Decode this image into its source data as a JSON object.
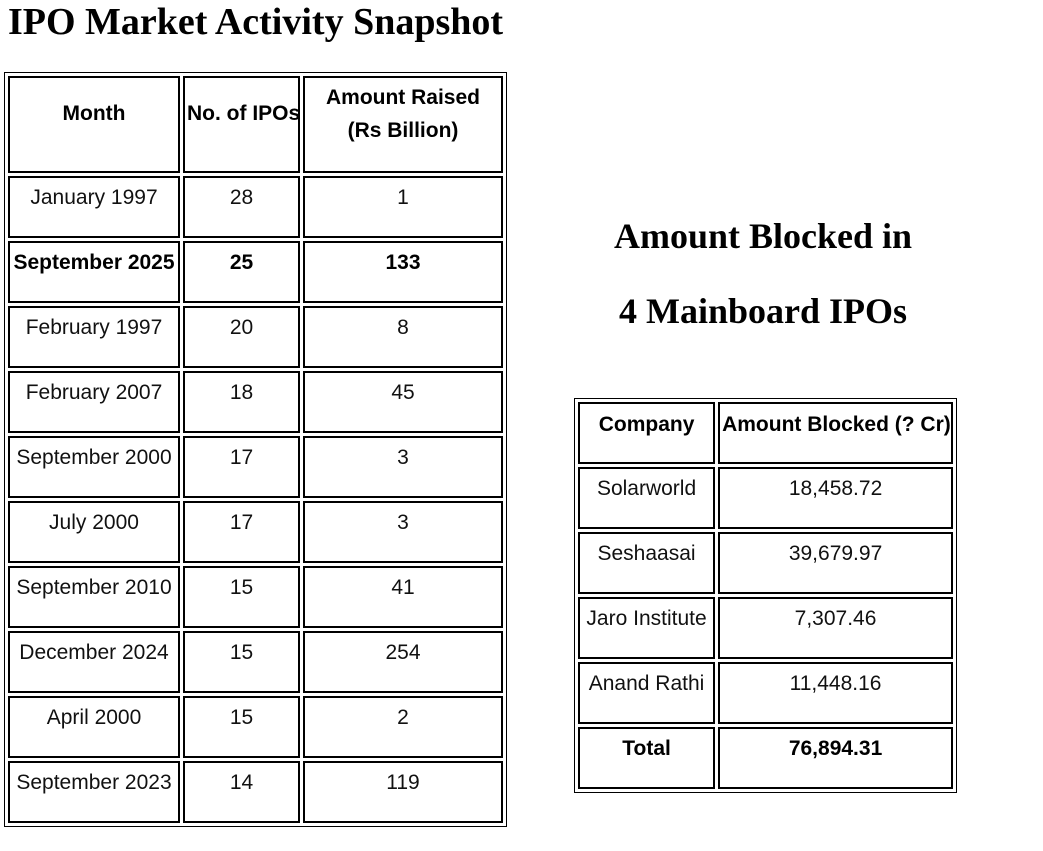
{
  "title": "IPO Market Activity Snapshot",
  "ipo_table": {
    "headers": {
      "month": "Month",
      "ipos": "No. of IPOs",
      "amount": "Amount Raised (Rs Billion)"
    },
    "rows": [
      {
        "month": "January 1997",
        "ipos": "28",
        "amount": "1"
      },
      {
        "month": "September 2025",
        "ipos": "25",
        "amount": "133"
      },
      {
        "month": "February 1997",
        "ipos": "20",
        "amount": "8"
      },
      {
        "month": "February 2007",
        "ipos": "18",
        "amount": "45"
      },
      {
        "month": "September 2000",
        "ipos": "17",
        "amount": "3"
      },
      {
        "month": "July 2000",
        "ipos": "17",
        "amount": "3"
      },
      {
        "month": "September 2010",
        "ipos": "15",
        "amount": "41"
      },
      {
        "month": "December 2024",
        "ipos": "15",
        "amount": "254"
      },
      {
        "month": "April 2000",
        "ipos": "15",
        "amount": "2"
      },
      {
        "month": "September 2023",
        "ipos": "14",
        "amount": "119"
      }
    ]
  },
  "blocked_section": {
    "heading_line1": "Amount Blocked in",
    "heading_line2": "4 Mainboard IPOs",
    "table": {
      "headers": {
        "company": "Company",
        "amount": "Amount Blocked (? Cr)"
      },
      "rows": [
        {
          "company": "Solarworld",
          "amount": "18,458.72"
        },
        {
          "company": "Seshaasai",
          "amount": "39,679.97"
        },
        {
          "company": "Jaro Institute",
          "amount": "7,307.46"
        },
        {
          "company": "Anand Rathi",
          "amount": "11,448.16"
        },
        {
          "company": "Total",
          "amount": "76,894.31"
        }
      ]
    }
  }
}
